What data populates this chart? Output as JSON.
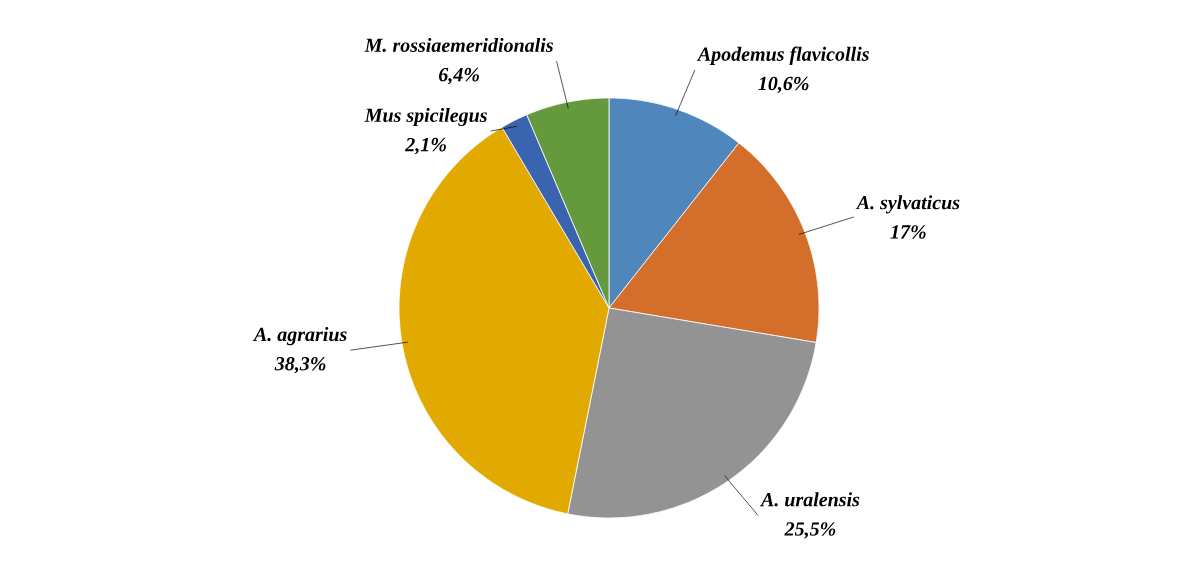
{
  "chart_data": {
    "type": "pie",
    "categories": [
      "Apodemus flavicollis",
      "A. sylvaticus",
      "A. uralensis",
      "A. agrarius",
      "Mus spicilegus",
      "M. rossiaemeridionalis"
    ],
    "values": [
      10.6,
      17,
      25.5,
      38.3,
      2.1,
      6.4
    ],
    "colors": [
      "#4f87bd",
      "#d36e2b",
      "#939393",
      "#e2a900",
      "#3a63b0",
      "#65993e"
    ],
    "value_labels": [
      "10,6%",
      "17%",
      "25,5%",
      "38,3%",
      "2,1%",
      "6,4%"
    ]
  }
}
